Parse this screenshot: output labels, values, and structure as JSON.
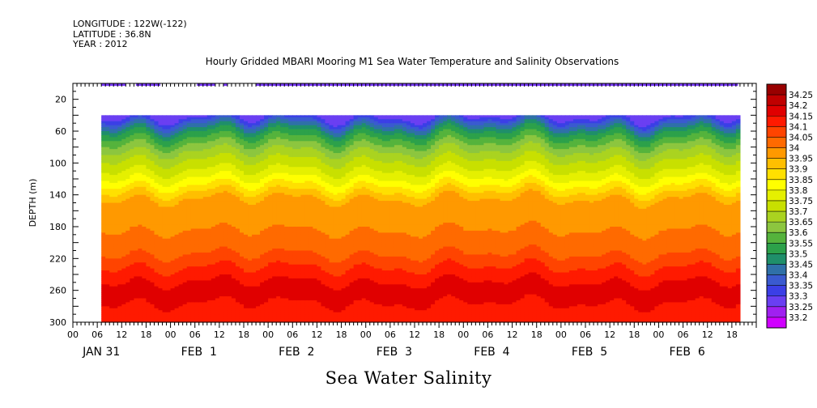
{
  "header": {
    "longitude": "LONGITUDE : 122W(-122)",
    "latitude": "LATITUDE : 36.8N",
    "year": "YEAR : 2012"
  },
  "chart_data": {
    "type": "heatmap",
    "title": "Hourly Gridded MBARI Mooring M1 Sea Water Temperature and Salinity Observations",
    "footer_title": "Sea Water Salinity",
    "ylabel": "DEPTH (m)",
    "ylim": [
      300,
      0
    ],
    "yticks": [
      "20",
      "60",
      "100",
      "140",
      "180",
      "220",
      "260",
      "300"
    ],
    "ytick_values": [
      20,
      60,
      100,
      140,
      180,
      220,
      260,
      300
    ],
    "x_hour_ticks": [
      "00",
      "06",
      "12",
      "18",
      "00",
      "06",
      "12",
      "18",
      "00",
      "06",
      "12",
      "18",
      "00",
      "06",
      "12",
      "18",
      "00",
      "06",
      "12",
      "18",
      "00",
      "06",
      "12",
      "18",
      "00",
      "06",
      "12",
      "18"
    ],
    "x_day_labels": [
      "JAN 31",
      "FEB  1",
      "FEB  2",
      "FEB  3",
      "FEB  4",
      "FEB  5",
      "FEB  6"
    ],
    "x_range_hours": [
      0,
      168
    ],
    "data_start_hour": 7,
    "colorbar_levels": [
      "34.25",
      "34.2",
      "34.15",
      "34.1",
      "34.05",
      "34",
      "33.95",
      "33.9",
      "33.85",
      "33.8",
      "33.75",
      "33.7",
      "33.65",
      "33.6",
      "33.55",
      "33.5",
      "33.45",
      "33.4",
      "33.35",
      "33.3",
      "33.25",
      "33.2"
    ],
    "colors": [
      "#990000",
      "#c00000",
      "#e00000",
      "#ff1a00",
      "#ff4400",
      "#ff6a00",
      "#ff9900",
      "#ffbf00",
      "#ffe000",
      "#ffff00",
      "#e5f000",
      "#c8e000",
      "#aad320",
      "#8cc63f",
      "#55b33c",
      "#2ca14a",
      "#1f8f6a",
      "#2f70a8",
      "#3a5ad0",
      "#3b3fe6",
      "#6a3ff2",
      "#a020f0",
      "#d000ff"
    ],
    "surface_bars_hours": [
      [
        7,
        13
      ],
      [
        15.5,
        21.5
      ],
      [
        30.5,
        35
      ],
      [
        37,
        38
      ],
      [
        45,
        163.5
      ]
    ],
    "surface_bar_color": "#7b3bff",
    "profile_salinity": [
      {
        "depth": 40,
        "value": 33.33
      },
      {
        "depth": 50,
        "value": 33.45
      },
      {
        "depth": 60,
        "value": 33.55
      },
      {
        "depth": 70,
        "value": 33.62
      },
      {
        "depth": 80,
        "value": 33.68
      },
      {
        "depth": 90,
        "value": 33.73
      },
      {
        "depth": 100,
        "value": 33.77
      },
      {
        "depth": 110,
        "value": 33.81
      },
      {
        "depth": 120,
        "value": 33.86
      },
      {
        "depth": 130,
        "value": 33.92
      },
      {
        "depth": 140,
        "value": 33.98
      },
      {
        "depth": 150,
        "value": 34.03
      },
      {
        "depth": 200,
        "value": 34.06
      },
      {
        "depth": 220,
        "value": 34.12
      },
      {
        "depth": 240,
        "value": 34.18
      },
      {
        "depth": 260,
        "value": 34.23
      },
      {
        "depth": 280,
        "value": 34.19
      },
      {
        "depth": 300,
        "value": 34.18
      }
    ]
  }
}
